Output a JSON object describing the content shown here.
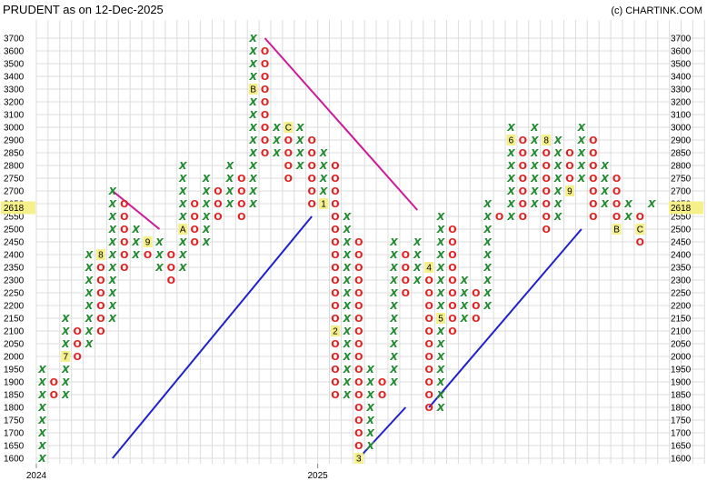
{
  "chart_data": {
    "type": "point-and-figure",
    "title": "PRUDENT as on 12-Dec-2025",
    "copyright": "(c) CHARTINK.COM",
    "current_price": "2618",
    "y_ticks": [
      1600,
      1650,
      1700,
      1750,
      1800,
      1850,
      1900,
      1950,
      2000,
      2050,
      2100,
      2150,
      2200,
      2250,
      2300,
      2350,
      2400,
      2450,
      2500,
      2550,
      2650,
      2700,
      2750,
      2800,
      2850,
      2900,
      3000,
      3100,
      3200,
      3300,
      3400,
      3500,
      3600,
      3700
    ],
    "x_labels": [
      {
        "col": 0,
        "text": "2024"
      },
      {
        "col": 24,
        "text": "2025"
      }
    ],
    "columns": [
      {
        "t": "X",
        "from": 1600,
        "to": 1950
      },
      {
        "t": "O",
        "from": 1850,
        "to": 1900
      },
      {
        "t": "X",
        "from": 1850,
        "to": 2150,
        "m": {
          "2000": "7"
        }
      },
      {
        "t": "O",
        "from": 2000,
        "to": 2100
      },
      {
        "t": "X",
        "from": 2050,
        "to": 2400
      },
      {
        "t": "O",
        "from": 2100,
        "to": 2400,
        "m": {
          "2400": "8"
        }
      },
      {
        "t": "X",
        "from": 2150,
        "to": 2700
      },
      {
        "t": "O",
        "from": 2350,
        "to": 2650
      },
      {
        "t": "X",
        "from": 2400,
        "to": 2500
      },
      {
        "t": "O",
        "from": 2400,
        "to": 2450,
        "m": {
          "2450": "9"
        }
      },
      {
        "t": "X",
        "from": 2350,
        "to": 2450
      },
      {
        "t": "O",
        "from": 2300,
        "to": 2400
      },
      {
        "t": "X",
        "from": 2350,
        "to": 2800,
        "m": {
          "2500": "A"
        }
      },
      {
        "t": "O",
        "from": 2450,
        "to": 2650
      },
      {
        "t": "X",
        "from": 2450,
        "to": 2750
      },
      {
        "t": "O",
        "from": 2550,
        "to": 2700
      },
      {
        "t": "X",
        "from": 2650,
        "to": 2800
      },
      {
        "t": "O",
        "from": 2550,
        "to": 2750
      },
      {
        "t": "X",
        "from": 2650,
        "to": 3700,
        "m": {
          "3300": "B"
        }
      },
      {
        "t": "O",
        "from": 2850,
        "to": 3600
      },
      {
        "t": "X",
        "from": 2850,
        "to": 3000
      },
      {
        "t": "O",
        "from": 2750,
        "to": 3000,
        "m": {
          "3000": "C"
        }
      },
      {
        "t": "X",
        "from": 2800,
        "to": 3000
      },
      {
        "t": "O",
        "from": 2600,
        "to": 2900
      },
      {
        "t": "X",
        "from": 2600,
        "to": 2850,
        "m": {
          "2650": "1"
        }
      },
      {
        "t": "O",
        "from": 1850,
        "to": 2800,
        "m": {
          "2100": "2"
        }
      },
      {
        "t": "X",
        "from": 1850,
        "to": 2550
      },
      {
        "t": "O",
        "from": 1600,
        "to": 2450,
        "m": {
          "1600": "3"
        }
      },
      {
        "t": "X",
        "from": 1650,
        "to": 1950
      },
      {
        "t": "O",
        "from": 1850,
        "to": 1900
      },
      {
        "t": "X",
        "from": 1900,
        "to": 2450
      },
      {
        "t": "O",
        "from": 2250,
        "to": 2400
      },
      {
        "t": "X",
        "from": 2300,
        "to": 2450
      },
      {
        "t": "O",
        "from": 1800,
        "to": 2350,
        "m": {
          "2350": "4"
        }
      },
      {
        "t": "X",
        "from": 1800,
        "to": 2550,
        "m": {
          "2150": "5"
        }
      },
      {
        "t": "O",
        "from": 2100,
        "to": 2500
      },
      {
        "t": "X",
        "from": 2150,
        "to": 2300
      },
      {
        "t": "O",
        "from": 2150,
        "to": 2250
      },
      {
        "t": "X",
        "from": 2200,
        "to": 2650
      },
      {
        "t": "O",
        "from": 2550,
        "to": 2600
      },
      {
        "t": "X",
        "from": 2550,
        "to": 3000,
        "m": {
          "2900": "6"
        }
      },
      {
        "t": "O",
        "from": 2550,
        "to": 2900,
        "m": {
          "2600": "7"
        }
      },
      {
        "t": "X",
        "from": 2600,
        "to": 3000
      },
      {
        "t": "O",
        "from": 2500,
        "to": 2900,
        "m": {
          "2900": "8"
        }
      },
      {
        "t": "X",
        "from": 2550,
        "to": 2900
      },
      {
        "t": "O",
        "from": 2700,
        "to": 2850,
        "m": {
          "2700": "9"
        }
      },
      {
        "t": "X",
        "from": 2750,
        "to": 3000
      },
      {
        "t": "O",
        "from": 2550,
        "to": 2900,
        "m": {
          "2600": "A"
        }
      },
      {
        "t": "X",
        "from": 2600,
        "to": 2800
      },
      {
        "t": "O",
        "from": 2500,
        "to": 2750,
        "m": {
          "2500": "B"
        }
      },
      {
        "t": "X",
        "from": 2550,
        "to": 2650
      },
      {
        "t": "O",
        "from": 2450,
        "to": 2600,
        "m": {
          "2500": "C"
        }
      },
      {
        "t": "X",
        "from": 2618,
        "to": 2650
      }
    ],
    "trendlines": [
      {
        "color": "#cc1a99",
        "from": {
          "col": 6,
          "price": 2700
        },
        "to": {
          "col": 10,
          "price": 2500
        }
      },
      {
        "color": "#2020cc",
        "from": {
          "col": 6,
          "price": 1600
        },
        "to": {
          "col": 23,
          "price": 2550
        }
      },
      {
        "color": "#cc1a99",
        "from": {
          "col": 19,
          "price": 3700
        },
        "to": {
          "col": 32,
          "price": 2600
        }
      },
      {
        "color": "#2020cc",
        "from": {
          "col": 27,
          "price": 1600
        },
        "to": {
          "col": 31,
          "price": 1800
        }
      },
      {
        "color": "#2020cc",
        "from": {
          "col": 33,
          "price": 1800
        },
        "to": {
          "col": 46,
          "price": 2500
        }
      }
    ],
    "grid": true
  }
}
